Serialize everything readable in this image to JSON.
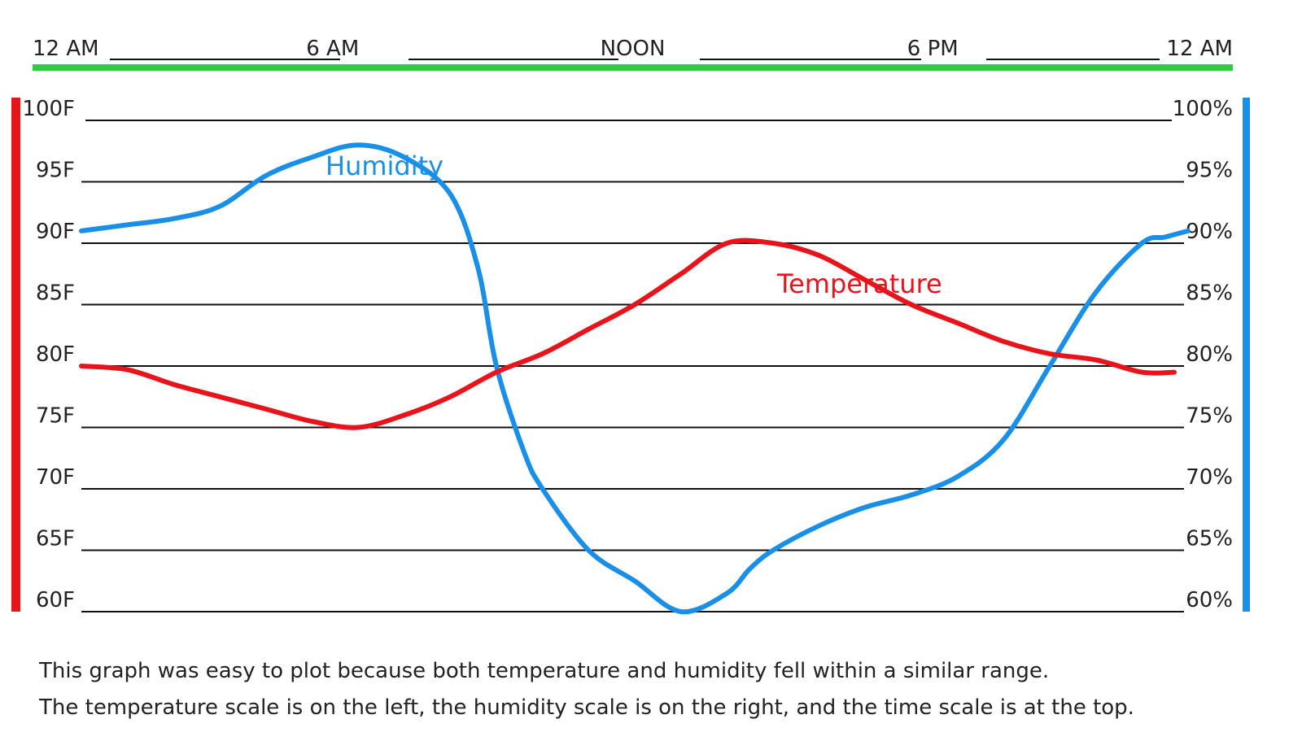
{
  "chart_data": {
    "type": "line",
    "x_unit": "hour of day",
    "x_ticks": [
      {
        "hour": 0,
        "label": "12 AM"
      },
      {
        "hour": 6,
        "label": "6 AM"
      },
      {
        "hour": 12,
        "label": "NOON"
      },
      {
        "hour": 18,
        "label": "6 PM"
      },
      {
        "hour": 24,
        "label": "12 AM"
      }
    ],
    "y_left_ticks": [
      {
        "value": 100,
        "label": "100F"
      },
      {
        "value": 95,
        "label": "95F"
      },
      {
        "value": 90,
        "label": "90F"
      },
      {
        "value": 85,
        "label": "85F"
      },
      {
        "value": 80,
        "label": "80F"
      },
      {
        "value": 75,
        "label": "75F"
      },
      {
        "value": 70,
        "label": "70F"
      },
      {
        "value": 65,
        "label": "65F"
      },
      {
        "value": 60,
        "label": "60F"
      }
    ],
    "y_right_ticks": [
      {
        "value": 100,
        "label": "100%"
      },
      {
        "value": 95,
        "label": "95%"
      },
      {
        "value": 90,
        "label": "90%"
      },
      {
        "value": 85,
        "label": "85%"
      },
      {
        "value": 80,
        "label": "80%"
      },
      {
        "value": 75,
        "label": "75%"
      },
      {
        "value": 70,
        "label": "70%"
      },
      {
        "value": 65,
        "label": "65%"
      },
      {
        "value": 60,
        "label": "60%"
      }
    ],
    "xlim": [
      0,
      24
    ],
    "ylim": [
      60,
      100
    ],
    "grid": true,
    "series": [
      {
        "name": "Humidity",
        "axis": "right",
        "color": "#1a8fe8",
        "x": [
          0,
          1,
          2,
          3,
          4,
          5,
          6,
          7,
          8,
          8.6,
          9,
          9.6,
          10,
          11,
          12,
          13,
          14,
          14.5,
          15,
          16,
          17,
          18,
          19,
          20,
          21,
          22,
          23,
          23.5,
          24
        ],
        "y": [
          91,
          91.5,
          92,
          93,
          95.5,
          97,
          98,
          97,
          94,
          88,
          80,
          73,
          70,
          65,
          62.5,
          60,
          61.5,
          63.5,
          65,
          67,
          68.5,
          69.5,
          71,
          74,
          80,
          86,
          90,
          90.5,
          91
        ]
      },
      {
        "name": "Temperature",
        "axis": "left",
        "color": "#e8141c",
        "x": [
          0,
          1,
          2,
          3,
          4,
          5,
          6,
          7,
          8,
          9,
          10,
          11,
          12,
          13,
          14,
          15,
          16,
          17,
          18,
          19,
          20,
          21,
          22,
          23,
          23.7
        ],
        "y": [
          80,
          79.7,
          78.5,
          77.5,
          76.5,
          75.5,
          75,
          76,
          77.5,
          79.5,
          81,
          83,
          85,
          87.5,
          90,
          90,
          89,
          87,
          85,
          83.5,
          82,
          81,
          80.5,
          79.5,
          79.5
        ]
      }
    ]
  },
  "text_labels": {
    "humidity": "Humidity",
    "temperature": "Temperature"
  },
  "caption": {
    "line1": "This graph was easy to plot because both temperature and humidity fell within a similar range.",
    "line2": "The temperature scale is on the left, the humidity scale is on the right, and the time scale is at the top."
  },
  "colors": {
    "time_axis": "#2ecc40",
    "temperature_axis": "#e8141c",
    "humidity_axis": "#1a8fe8",
    "grid": "#111111"
  }
}
